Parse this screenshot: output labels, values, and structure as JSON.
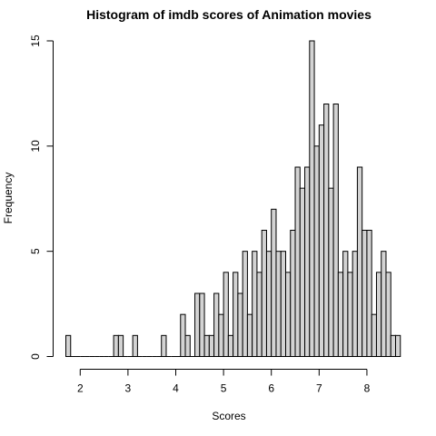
{
  "chart_data": {
    "type": "bar",
    "title": "Histogram of imdb scores of Animation movies",
    "xlabel": "Scores",
    "ylabel": "Frequency",
    "bin_width": 0.1,
    "x_start": 1.7,
    "x_end": 8.6,
    "xlim": [
      1.7,
      8.6
    ],
    "ylim": [
      0,
      15
    ],
    "x_ticks": [
      2,
      3,
      4,
      5,
      6,
      7,
      8
    ],
    "y_ticks": [
      0,
      5,
      10,
      15
    ],
    "bar_fill": "#d3d3d3",
    "bar_stroke": "#000000",
    "values": [
      1,
      0,
      0,
      0,
      0,
      0,
      0,
      0,
      0,
      0,
      1,
      1,
      0,
      0,
      1,
      0,
      0,
      0,
      0,
      0,
      1,
      0,
      0,
      0,
      2,
      1,
      0,
      3,
      3,
      1,
      1,
      3,
      2,
      4,
      1,
      4,
      3,
      5,
      2,
      5,
      4,
      6,
      5,
      7,
      5,
      5,
      4,
      6,
      9,
      8,
      9,
      15,
      10,
      11,
      12,
      8,
      12,
      4,
      5,
      4,
      5,
      9,
      6,
      6,
      2,
      4,
      5,
      4,
      1,
      1
    ]
  }
}
